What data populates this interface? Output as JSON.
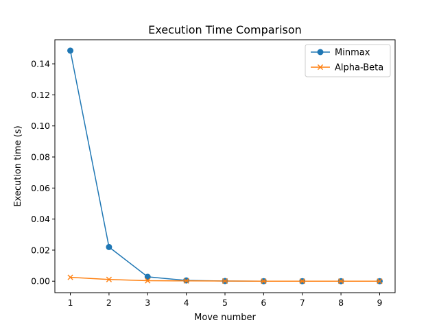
{
  "chart_data": {
    "type": "line",
    "title": "Execution Time Comparison",
    "xlabel": "Move number",
    "ylabel": "Execution time (s)",
    "x": [
      1,
      2,
      3,
      4,
      5,
      6,
      7,
      8,
      9
    ],
    "xlim": [
      0.6,
      9.4
    ],
    "ylim": [
      -0.0074,
      0.1555
    ],
    "xticks": [
      "1",
      "2",
      "3",
      "4",
      "5",
      "6",
      "7",
      "8",
      "9"
    ],
    "yticks": [
      0.0,
      0.02,
      0.04,
      0.06,
      0.08,
      0.1,
      0.12,
      0.14
    ],
    "ytick_labels": [
      "0.00",
      "0.02",
      "0.04",
      "0.06",
      "0.08",
      "0.10",
      "0.12",
      "0.14"
    ],
    "grid": false,
    "legend_position": "top-right",
    "series": [
      {
        "name": "Minmax",
        "color": "#1f77b4",
        "marker": "circle",
        "values": [
          0.1485,
          0.022,
          0.0028,
          0.0005,
          0.0001,
          0.0,
          0.0,
          0.0,
          0.0
        ]
      },
      {
        "name": "Alpha-Beta",
        "color": "#ff7f0e",
        "marker": "x",
        "values": [
          0.0025,
          0.0011,
          0.0003,
          0.0002,
          0.0001,
          0.0,
          0.0,
          0.0,
          0.0
        ]
      }
    ]
  }
}
